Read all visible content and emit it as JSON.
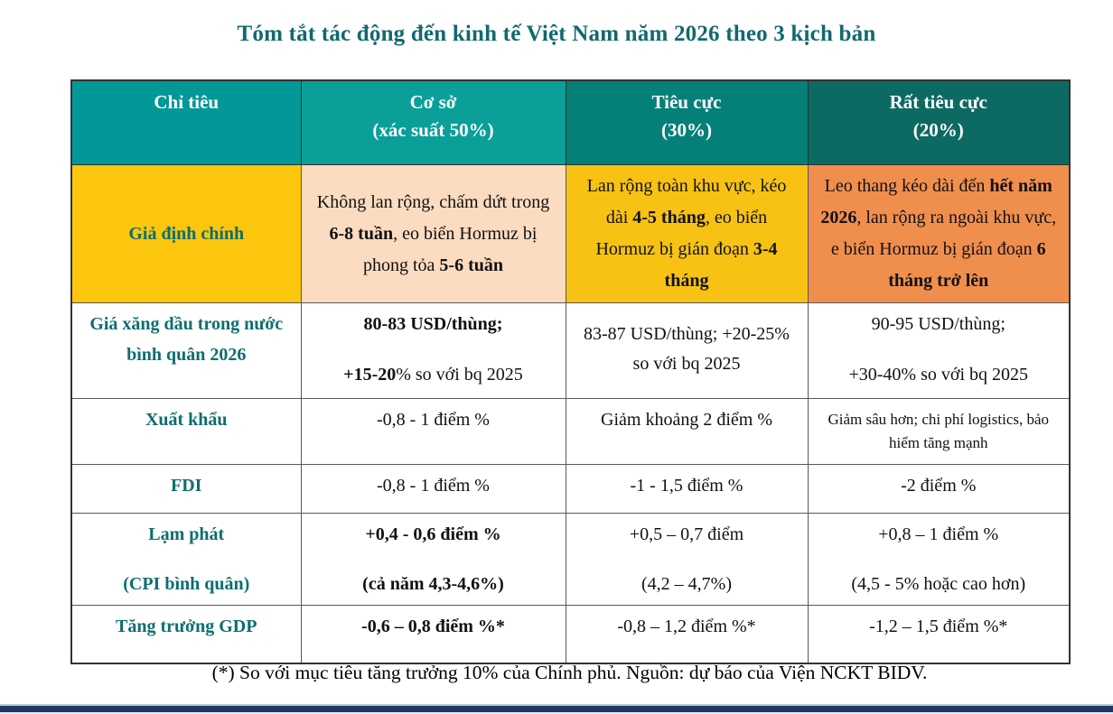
{
  "title": "Tóm tắt tác động đến kinh tế Việt Nam năm 2026 theo 3 kịch bản",
  "colors": {
    "header_col1": "#019897",
    "header_col2": "#0a9f98",
    "header_col3": "#048078",
    "header_col4": "#0d6a63",
    "label_yellow": "#fcc50e",
    "cell_peach": "#fbdcc1",
    "cell_gold": "#f7c213",
    "cell_orange": "#f08e4e",
    "teal_text": "#0d6e6e",
    "bottom_bar": "#1f3864"
  },
  "table": {
    "header": {
      "col1": "Chỉ tiêu",
      "col2_line1": "Cơ sở",
      "col2_line2": "(xác suất 50%)",
      "col3_line1": "Tiêu cực",
      "col3_line2": "(30%)",
      "col4_line1": "Rất tiêu cực",
      "col4_line2": "(20%)"
    },
    "rows": {
      "assumption": {
        "label": "Giả định chính",
        "base": [
          {
            "t": "Không lan rộng, chấm dứt trong ",
            "b": false
          },
          {
            "t": "6-8 tuần",
            "b": true
          },
          {
            "t": ", eo biển Hormuz bị phong tỏa ",
            "b": false
          },
          {
            "t": "5-6 tuần",
            "b": true
          }
        ],
        "negative": [
          {
            "t": "Lan rộng toàn khu vực, kéo dài ",
            "b": false
          },
          {
            "t": "4-5 tháng",
            "b": true
          },
          {
            "t": ", eo biển Hormuz bị gián đoạn ",
            "b": false
          },
          {
            "t": "3-4 tháng",
            "b": true
          }
        ],
        "very_negative": [
          {
            "t": "Leo thang kéo dài đến ",
            "b": false
          },
          {
            "t": "hết năm 2026",
            "b": true
          },
          {
            "t": ", lan rộng ra ngoài khu vực, e biển Hormuz bị gián đoạn ",
            "b": false
          },
          {
            "t": "6 tháng trở lên",
            "b": true
          }
        ]
      },
      "fuel": {
        "label": "Giá xăng dầu trong nước bình quân 2026",
        "base_line1": "80-83 USD/thùng;",
        "base_line2": [
          {
            "t": "+15-20",
            "b": true
          },
          {
            "t": "% so với bq 2025",
            "b": false
          }
        ],
        "negative": "83-87 USD/thùng; +20-25% so với bq 2025",
        "very_negative_line1": "90-95 USD/thùng;",
        "very_negative_line2": "+30-40% so với bq 2025"
      },
      "export": {
        "label": "Xuất khẩu",
        "base": "-0,8 - 1 điểm %",
        "negative": "Giảm khoảng 2 điểm %",
        "very_negative": "Giảm sâu hơn; chi phí logistics, bảo hiểm tăng mạnh"
      },
      "fdi": {
        "label": "FDI",
        "base": "-0,8 - 1 điểm %",
        "negative": "-1 - 1,5 điểm %",
        "very_negative": "-2 điểm %"
      },
      "inflation": {
        "label_line1": "Lạm phát",
        "label_line2": "(CPI bình quân)",
        "base_line1": "+0,4 - 0,6 điểm %",
        "base_line2": "(cả năm 4,3-4,6%)",
        "negative_line1": "+0,5 – 0,7 điểm",
        "negative_line2": "(4,2 – 4,7%)",
        "very_negative_line1": "+0,8 – 1 điểm %",
        "very_negative_line2": "(4,5 - 5% hoặc cao hơn)"
      },
      "gdp": {
        "label": "Tăng trưởng GDP",
        "base": "-0,6 – 0,8 điểm %*",
        "negative": "-0,8 – 1,2 điểm %*",
        "very_negative": "-1,2 – 1,5 điểm %*"
      }
    }
  },
  "footnote": "(*) So với mục tiêu tăng trưởng 10% của Chính phủ. Nguồn: dự báo của Viện NCKT BIDV."
}
